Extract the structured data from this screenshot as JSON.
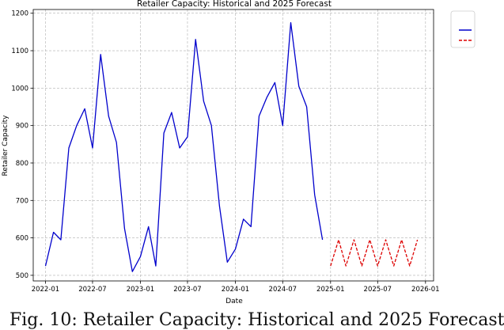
{
  "chart_data": {
    "type": "line",
    "title": "Retailer Capacity: Historical and 2025 Forecast",
    "xlabel": "Date",
    "ylabel": "Retailer Capacity",
    "grid": true,
    "legend_placement": "upper right (outside, cropped)",
    "x_ticks": [
      "2022-01",
      "2022-07",
      "2023-01",
      "2023-07",
      "2024-01",
      "2024-07",
      "2025-01",
      "2025-07",
      "2026-01"
    ],
    "y_ticks": [
      500,
      600,
      700,
      800,
      900,
      1000,
      1100,
      1200
    ],
    "xlim": [
      "2021-11-15",
      "2026-02-01"
    ],
    "ylim": [
      485,
      1210
    ],
    "series": [
      {
        "color": "#0000cc",
        "style": "solid",
        "x": [
          "2022-01",
          "2022-02",
          "2022-03",
          "2022-04",
          "2022-05",
          "2022-06",
          "2022-07",
          "2022-08",
          "2022-09",
          "2022-10",
          "2022-11",
          "2022-12",
          "2023-01",
          "2023-02",
          "2023-03",
          "2023-04",
          "2023-05",
          "2023-06",
          "2023-07",
          "2023-08",
          "2023-09",
          "2023-10",
          "2023-11",
          "2023-12",
          "2024-01",
          "2024-02",
          "2024-03",
          "2024-04",
          "2024-05",
          "2024-06",
          "2024-07",
          "2024-08",
          "2024-09",
          "2024-10",
          "2024-11",
          "2024-12"
        ],
        "values": [
          525,
          615,
          595,
          840,
          900,
          945,
          840,
          1090,
          925,
          855,
          625,
          510,
          550,
          630,
          525,
          880,
          935,
          840,
          870,
          1130,
          965,
          900,
          685,
          535,
          570,
          650,
          630,
          925,
          975,
          1015,
          900,
          1175,
          1005,
          950,
          715,
          595
        ]
      },
      {
        "color": "#dd0000",
        "style": "dashed",
        "x": [
          "2025-01",
          "2025-02",
          "2025-03",
          "2025-04",
          "2025-05",
          "2025-06",
          "2025-07",
          "2025-08",
          "2025-09",
          "2025-10",
          "2025-11",
          "2025-12"
        ],
        "values": [
          525,
          595,
          525,
          595,
          525,
          595,
          525,
          595,
          525,
          595,
          525,
          595
        ]
      }
    ]
  },
  "caption": "Fig. 10: Retailer Capacity: Historical and 2025 Forecast"
}
